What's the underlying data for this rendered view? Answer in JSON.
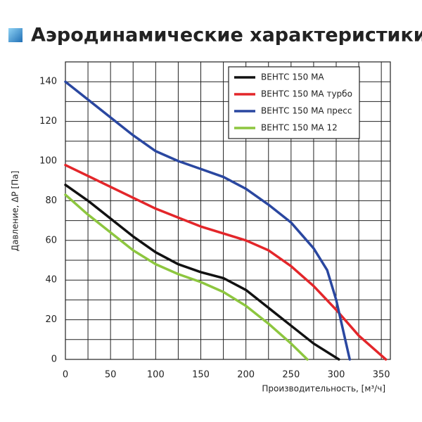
{
  "chart_data": {
    "type": "line",
    "title": "Аэродинамические характеристики",
    "xlabel": "Производительность, [м³/ч]",
    "ylabel": "Давление, ΔP [Па]",
    "xlim": [
      0,
      360
    ],
    "ylim": [
      0,
      150
    ],
    "xticks": [
      0,
      50,
      100,
      150,
      200,
      250,
      300,
      350
    ],
    "yticks": [
      0,
      20,
      40,
      60,
      80,
      100,
      120,
      140
    ],
    "x_minor_ticks": [
      25,
      75,
      125,
      175,
      225,
      275,
      325
    ],
    "y_minor_ticks": [
      10,
      30,
      50,
      70,
      90,
      110,
      130,
      150
    ],
    "grid": true,
    "legend": "upper right",
    "series": [
      {
        "name": "ВЕНТС 150 МА",
        "color": "#111111",
        "x": [
          0,
          25,
          50,
          75,
          100,
          125,
          150,
          175,
          200,
          225,
          250,
          275,
          303
        ],
        "values": [
          88,
          80,
          71,
          62,
          54,
          48,
          44,
          41,
          35,
          26,
          17,
          8,
          0
        ]
      },
      {
        "name": "ВЕНТС 150 МА турбо",
        "color": "#e3262a",
        "x": [
          0,
          50,
          100,
          150,
          200,
          225,
          250,
          275,
          300,
          325,
          355
        ],
        "values": [
          98,
          87,
          76,
          67,
          60,
          55,
          47,
          37,
          25,
          12,
          0
        ]
      },
      {
        "name": "ВЕНТС 150 МА пресс",
        "color": "#2a47a0",
        "x": [
          0,
          25,
          50,
          75,
          100,
          125,
          150,
          175,
          200,
          225,
          250,
          275,
          290,
          300,
          310,
          315
        ],
        "values": [
          140,
          131,
          122,
          113,
          105,
          100,
          96,
          92,
          86,
          78,
          69,
          56,
          45,
          30,
          10,
          0
        ]
      },
      {
        "name": "ВЕНТС 150 МА  12",
        "color": "#8dc63f",
        "x": [
          0,
          25,
          50,
          75,
          100,
          125,
          150,
          175,
          200,
          225,
          250,
          268
        ],
        "values": [
          83,
          73,
          64,
          55,
          48,
          43,
          39,
          34,
          27,
          18,
          8,
          0
        ]
      }
    ]
  }
}
